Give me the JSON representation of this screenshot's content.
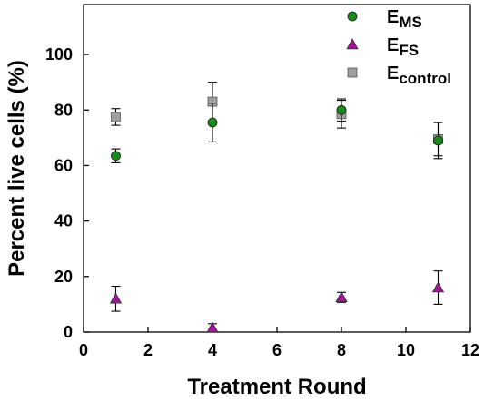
{
  "chart_data": {
    "type": "scatter",
    "xlabel": "Treatment Round",
    "ylabel": "Percent live cells (%)",
    "xlim": [
      0,
      12
    ],
    "ylim": [
      0,
      118
    ],
    "xticks": [
      "0",
      "2",
      "4",
      "6",
      "8",
      "10",
      "12"
    ],
    "yticks": [
      "0",
      "20",
      "40",
      "60",
      "80",
      "100"
    ],
    "grid": false,
    "legend_position": "top-right",
    "series": [
      {
        "name": "E",
        "subscript": "MS",
        "marker": "circle",
        "color": "#1a8a1a",
        "x": [
          1,
          4,
          8,
          11
        ],
        "y": [
          63.5,
          75.5,
          80,
          69
        ],
        "err": [
          2.5,
          7,
          4,
          6.5
        ]
      },
      {
        "name": "E",
        "subscript": "FS",
        "marker": "triangle",
        "color": "#a0189a",
        "x": [
          1,
          4,
          8,
          11
        ],
        "y": [
          12,
          1.5,
          12.5,
          16
        ],
        "err": [
          4.5,
          1.5,
          1.8,
          6
        ]
      },
      {
        "name": "E",
        "subscript": "control",
        "marker": "square",
        "color": "#a0a0a0",
        "x": [
          1,
          4,
          8,
          11
        ],
        "y": [
          77.5,
          83,
          78.5,
          69.5
        ],
        "err": [
          3,
          7,
          5,
          6
        ]
      }
    ]
  }
}
